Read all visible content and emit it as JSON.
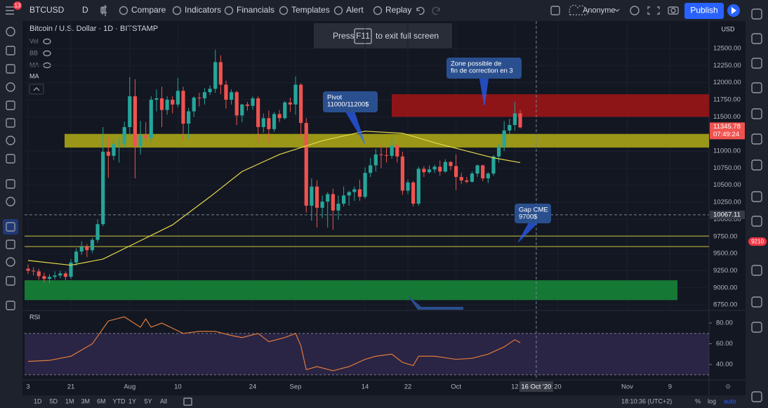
{
  "toolbar": {
    "badge": "13",
    "symbol": "BTCUSD",
    "interval": "D",
    "buttons": [
      "Compare",
      "Indicators",
      "Financials",
      "Templates",
      "Alert",
      "Replay"
    ],
    "account": "Anonyme",
    "publish": "Publish"
  },
  "notice": {
    "before": "Press",
    "key": "F11",
    "after": "to exit full screen"
  },
  "chart_data": {
    "type": "candlestick",
    "title": "Bitcoin / U.S. Dollar · 1D · BITSTAMP",
    "indicators": [
      "Vol",
      "BB",
      "MA"
    ],
    "indicator_extra": "MA",
    "currency": "USD",
    "color_up": "#26a69a",
    "color_down": "#ef5350",
    "grid": true,
    "xlim": [
      -0.66,
      127.3
    ],
    "ylim": [
      8690,
      12900
    ],
    "yticks": [
      {
        "value": 12500,
        "label": "12500.00"
      },
      {
        "value": 12250,
        "label": "12250.00"
      },
      {
        "value": 12000,
        "label": "12000.00"
      },
      {
        "value": 11750,
        "label": "11750.00"
      },
      {
        "value": 11500,
        "label": "11500.00"
      },
      {
        "value": 11000,
        "label": "11000.00"
      },
      {
        "value": 10750,
        "label": "10750.00"
      },
      {
        "value": 10500,
        "label": "10500.00"
      },
      {
        "value": 10250,
        "label": "10250.00"
      },
      {
        "value": 10000,
        "label": "10000.00"
      },
      {
        "value": 9750,
        "label": "9750.00"
      },
      {
        "value": 9500,
        "label": "9500.00"
      },
      {
        "value": 9250,
        "label": "9250.00"
      },
      {
        "value": 9000,
        "label": "9000.00"
      },
      {
        "value": 8750,
        "label": "8750.00"
      }
    ],
    "xticks": [
      {
        "value": 0,
        "label": "3"
      },
      {
        "value": 8,
        "label": "21"
      },
      {
        "value": 19,
        "label": "Aug"
      },
      {
        "value": 28,
        "label": "10"
      },
      {
        "value": 42,
        "label": "24"
      },
      {
        "value": 50,
        "label": "Sep"
      },
      {
        "value": 63,
        "label": "14"
      },
      {
        "value": 71,
        "label": "22"
      },
      {
        "value": 80,
        "label": "Oct"
      },
      {
        "value": 91,
        "label": "12"
      },
      {
        "value": 99,
        "label": "20"
      },
      {
        "value": 112,
        "label": "Nov"
      },
      {
        "value": 120,
        "label": "9"
      }
    ],
    "candles": [
      [
        9280,
        9340,
        9200,
        9250
      ],
      [
        9250,
        9300,
        9180,
        9240
      ],
      [
        9240,
        9280,
        9120,
        9170
      ],
      [
        9170,
        9220,
        9080,
        9130
      ],
      [
        9130,
        9200,
        9070,
        9160
      ],
      [
        9160,
        9240,
        9120,
        9180
      ],
      [
        9180,
        9250,
        9140,
        9210
      ],
      [
        9210,
        9240,
        9110,
        9160
      ],
      [
        9160,
        9420,
        9130,
        9370
      ],
      [
        9370,
        9580,
        9320,
        9530
      ],
      [
        9530,
        9680,
        9480,
        9600
      ],
      [
        9600,
        9640,
        9450,
        9550
      ],
      [
        9550,
        9730,
        9510,
        9700
      ],
      [
        9700,
        10000,
        9660,
        9930
      ],
      [
        9930,
        11350,
        9900,
        10990
      ],
      [
        10990,
        11200,
        10610,
        10930
      ],
      [
        10930,
        11180,
        10870,
        11100
      ],
      [
        11100,
        11180,
        10830,
        11110
      ],
      [
        11110,
        11430,
        11050,
        11350
      ],
      [
        11350,
        12080,
        11220,
        11800
      ],
      [
        11800,
        12050,
        10600,
        11070
      ],
      [
        11070,
        11440,
        10950,
        11230
      ],
      [
        11230,
        11420,
        11060,
        11190
      ],
      [
        11190,
        11800,
        11120,
        11750
      ],
      [
        11750,
        11900,
        11580,
        11770
      ],
      [
        11770,
        11940,
        11350,
        11600
      ],
      [
        11600,
        11800,
        11530,
        11750
      ],
      [
        11750,
        11800,
        11550,
        11680
      ],
      [
        11680,
        12070,
        11640,
        11880
      ],
      [
        11880,
        11940,
        11150,
        11400
      ],
      [
        11400,
        11630,
        11180,
        11580
      ],
      [
        11580,
        11800,
        11500,
        11780
      ],
      [
        11780,
        11850,
        11650,
        11770
      ],
      [
        11770,
        11920,
        11680,
        11860
      ],
      [
        11860,
        11960,
        11820,
        11910
      ],
      [
        11910,
        12480,
        11850,
        12300
      ],
      [
        12300,
        12400,
        11830,
        11970
      ],
      [
        11970,
        12030,
        11620,
        11750
      ],
      [
        11750,
        11900,
        11680,
        11860
      ],
      [
        11860,
        11880,
        11380,
        11520
      ],
      [
        11520,
        11690,
        11420,
        11680
      ],
      [
        11680,
        11720,
        11590,
        11660
      ],
      [
        11660,
        11800,
        11600,
        11770
      ],
      [
        11770,
        11800,
        11130,
        11350
      ],
      [
        11350,
        11550,
        11270,
        11480
      ],
      [
        11480,
        11590,
        11120,
        11320
      ],
      [
        11320,
        11570,
        11280,
        11540
      ],
      [
        11540,
        11600,
        11420,
        11480
      ],
      [
        11480,
        11730,
        11460,
        11710
      ],
      [
        11710,
        11780,
        11570,
        11680
      ],
      [
        11680,
        12090,
        11530,
        11970
      ],
      [
        11970,
        11990,
        11180,
        11410
      ],
      [
        11410,
        11480,
        10100,
        10200
      ],
      [
        10200,
        10600,
        9980,
        10480
      ],
      [
        10480,
        10570,
        9880,
        10170
      ],
      [
        10170,
        10350,
        10020,
        10260
      ],
      [
        10260,
        10400,
        9880,
        10370
      ],
      [
        10370,
        10450,
        9850,
        10130
      ],
      [
        10130,
        10350,
        10000,
        10230
      ],
      [
        10230,
        10480,
        10190,
        10350
      ],
      [
        10350,
        10420,
        10200,
        10400
      ],
      [
        10400,
        10480,
        10270,
        10440
      ],
      [
        10440,
        10580,
        10270,
        10330
      ],
      [
        10330,
        10760,
        10300,
        10680
      ],
      [
        10680,
        10900,
        10620,
        10790
      ],
      [
        10790,
        11030,
        10700,
        10950
      ],
      [
        10950,
        11090,
        10750,
        10940
      ],
      [
        10940,
        11050,
        10830,
        10930
      ],
      [
        10930,
        11180,
        10890,
        11080
      ],
      [
        11080,
        11100,
        10830,
        10920
      ],
      [
        10920,
        10990,
        10360,
        10420
      ],
      [
        10420,
        10580,
        10370,
        10540
      ],
      [
        10540,
        10560,
        10190,
        10230
      ],
      [
        10230,
        10770,
        10200,
        10740
      ],
      [
        10740,
        10780,
        10620,
        10690
      ],
      [
        10690,
        10790,
        10670,
        10730
      ],
      [
        10730,
        10800,
        10680,
        10770
      ],
      [
        10770,
        10860,
        10640,
        10700
      ],
      [
        10700,
        10880,
        10680,
        10840
      ],
      [
        10840,
        10850,
        10720,
        10780
      ],
      [
        10780,
        10950,
        10430,
        10620
      ],
      [
        10620,
        10680,
        10520,
        10570
      ],
      [
        10570,
        10620,
        10530,
        10550
      ],
      [
        10550,
        10700,
        10540,
        10670
      ],
      [
        10670,
        10800,
        10620,
        10790
      ],
      [
        10790,
        10800,
        10560,
        10600
      ],
      [
        10600,
        10690,
        10530,
        10670
      ],
      [
        10670,
        10940,
        10640,
        10920
      ],
      [
        10920,
        11100,
        10830,
        11060
      ],
      [
        11060,
        11440,
        11000,
        11300
      ],
      [
        11300,
        11470,
        11240,
        11380
      ],
      [
        11380,
        11720,
        11300,
        11550
      ],
      [
        11550,
        11600,
        11330,
        11345.78
      ]
    ],
    "ma": {
      "name": "MA",
      "color": "#e8d84a",
      "x": [
        0,
        8,
        14,
        20,
        27,
        34,
        40,
        47,
        55,
        63,
        70,
        76,
        82,
        87,
        92
      ],
      "values": [
        9400,
        9330,
        9420,
        9650,
        9920,
        10330,
        10700,
        10950,
        11150,
        11290,
        11260,
        11120,
        11000,
        10900,
        10830
      ]
    },
    "zones": [
      {
        "from": 11050,
        "to": 11250,
        "color": "#b1ad16"
      },
      {
        "from": 11500,
        "to": 11830,
        "color": "#a31515"
      },
      {
        "from": 8820,
        "to": 9110,
        "color": "#178a38"
      }
    ],
    "levels": [
      9756,
      9602
    ],
    "level_color": "#c9c43a",
    "last_price": {
      "value": 11345.78,
      "label": "11345.78"
    },
    "countdown": "07:49:24",
    "crosshair": {
      "price": {
        "value": 10067.11,
        "label": "10067.11"
      },
      "date": {
        "value": 95,
        "label": "16 Oct '20"
      }
    },
    "annotations": [
      [
        "Pivot",
        "11000/11200$"
      ],
      [
        "Zone possible de",
        "fin de correction en 3"
      ],
      [
        "Gap CME",
        "9700$"
      ]
    ],
    "rsi": {
      "title": "RSI",
      "color": "#e07b39",
      "band": [
        30,
        70
      ],
      "ylim": [
        25.8,
        90.2
      ],
      "yticks": [
        {
          "value": 80,
          "label": "80.00"
        },
        {
          "value": 60,
          "label": "60.00"
        },
        {
          "value": 40,
          "label": "40.00"
        }
      ],
      "x": [
        0,
        4,
        8,
        12,
        15,
        18,
        21,
        22,
        23,
        25,
        29,
        32,
        35,
        38,
        40,
        43,
        45,
        48,
        50,
        51,
        52,
        54,
        57,
        60,
        63,
        65,
        68,
        70,
        72,
        73,
        76,
        80,
        83,
        86,
        89,
        91,
        92
      ],
      "values": [
        43,
        44,
        48,
        60,
        82,
        86,
        76,
        84,
        76,
        80,
        70,
        72,
        72,
        68,
        66,
        70,
        62,
        66,
        70,
        58,
        35,
        38,
        34,
        38,
        45,
        48,
        50,
        42,
        39,
        48,
        48,
        45,
        46,
        50,
        57,
        64,
        61
      ]
    }
  },
  "footer": {
    "ranges": [
      "1D",
      "5D",
      "1M",
      "3M",
      "6M",
      "YTD",
      "1Y",
      "5Y",
      "All"
    ],
    "clock": "18:10:36 (UTC+2)",
    "options": [
      "%",
      "log",
      "auto"
    ]
  },
  "sidebar_badge": "9210"
}
